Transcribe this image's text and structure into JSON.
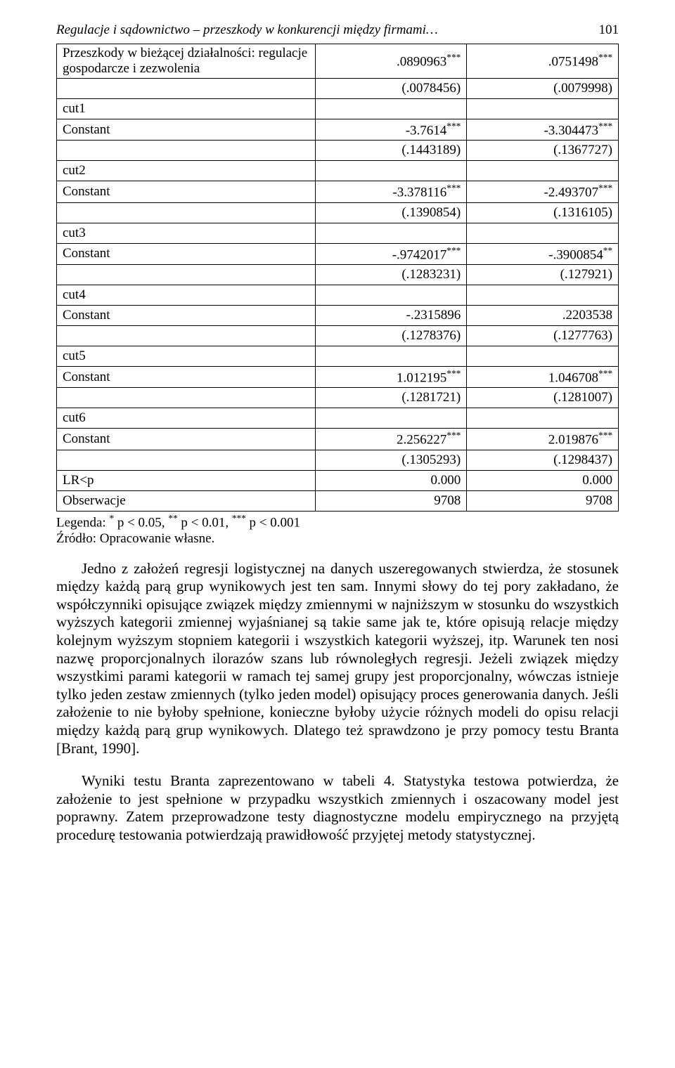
{
  "header": {
    "running_title": "Regulacje i sądownictwo – przeszkody w konkurencji między firmami…",
    "page_number": "101"
  },
  "table": {
    "rows": [
      {
        "label": "Przeszkody w bieżącej działalności: regulacje gospodarcze i zezwolenia",
        "c1": ".0890963",
        "s1": "***",
        "c2": ".0751498",
        "s2": "***"
      },
      {
        "label": "",
        "c1": "(.0078456)",
        "s1": "",
        "c2": "(.0079998)",
        "s2": ""
      },
      {
        "label": "cut1",
        "c1": "",
        "s1": "",
        "c2": "",
        "s2": ""
      },
      {
        "label": "Constant",
        "c1": "-3.7614",
        "s1": "***",
        "c2": "-3.304473",
        "s2": "***"
      },
      {
        "label": "",
        "c1": "(.1443189)",
        "s1": "",
        "c2": "(.1367727)",
        "s2": ""
      },
      {
        "label": "cut2",
        "c1": "",
        "s1": "",
        "c2": "",
        "s2": ""
      },
      {
        "label": "Constant",
        "c1": "-3.378116",
        "s1": "***",
        "c2": "-2.493707",
        "s2": "***"
      },
      {
        "label": "",
        "c1": "(.1390854)",
        "s1": "",
        "c2": "(.1316105)",
        "s2": ""
      },
      {
        "label": "cut3",
        "c1": "",
        "s1": "",
        "c2": "",
        "s2": ""
      },
      {
        "label": "Constant",
        "c1": "-.9742017",
        "s1": "***",
        "c2": "-.3900854",
        "s2": "**"
      },
      {
        "label": "",
        "c1": "(.1283231)",
        "s1": "",
        "c2": "(.127921)",
        "s2": ""
      },
      {
        "label": "cut4",
        "c1": "",
        "s1": "",
        "c2": "",
        "s2": ""
      },
      {
        "label": "Constant",
        "c1": "-.2315896",
        "s1": "",
        "c2": ".2203538",
        "s2": ""
      },
      {
        "label": "",
        "c1": "(.1278376)",
        "s1": "",
        "c2": "(.1277763)",
        "s2": ""
      },
      {
        "label": "cut5",
        "c1": "",
        "s1": "",
        "c2": "",
        "s2": ""
      },
      {
        "label": "Constant",
        "c1": "1.012195",
        "s1": "***",
        "c2": "1.046708",
        "s2": "***"
      },
      {
        "label": "",
        "c1": "(.1281721)",
        "s1": "",
        "c2": "(.1281007)",
        "s2": ""
      },
      {
        "label": "cut6",
        "c1": "",
        "s1": "",
        "c2": "",
        "s2": ""
      },
      {
        "label": "Constant",
        "c1": "2.256227",
        "s1": "***",
        "c2": "2.019876",
        "s2": "***"
      },
      {
        "label": "",
        "c1": "(.1305293)",
        "s1": "",
        "c2": "(.1298437)",
        "s2": ""
      },
      {
        "label": "LR<p",
        "c1": "0.000",
        "s1": "",
        "c2": "0.000",
        "s2": ""
      },
      {
        "label": "Obserwacje",
        "c1": "9708",
        "s1": "",
        "c2": "9708",
        "s2": ""
      }
    ]
  },
  "legend": {
    "line1_prefix": "Legenda: ",
    "line1_a": "*",
    "line1_at": " p < 0.05, ",
    "line1_b": "**",
    "line1_bt": " p < 0.01, ",
    "line1_c": "***",
    "line1_ct": " p < 0.001",
    "line2": "Źródło: Opracowanie własne."
  },
  "paragraphs": {
    "p1": "Jedno z założeń regresji logistycznej na danych uszeregowanych stwierdza, że stosunek między każdą parą grup wynikowych jest ten sam. Innymi słowy do tej pory zakładano, że współczynniki opisujące związek między zmiennymi w najniższym w stosunku do wszystkich wyższych kategorii zmiennej wyjaśnianej są takie same jak te, które opisują relacje między kolejnym wyższym stopniem kategorii i wszystkich kategorii wyższej, itp. Warunek ten nosi nazwę proporcjonalnych ilorazów szans lub równoległych regresji. Jeżeli związek między wszystkimi parami kategorii w ramach tej samej grupy jest proporcjonalny, wówczas istnieje tylko jeden zestaw zmiennych (tylko jeden model) opisujący proces generowania danych. Jeśli założenie to nie byłoby spełnione, konieczne byłoby użycie różnych modeli do opisu relacji między każdą parą grup wynikowych. Dlatego też sprawdzono je przy pomocy testu Branta [Brant, 1990].",
    "p2": "Wyniki testu Branta zaprezentowano w tabeli 4. Statystyka testowa potwierdza, że założenie to jest spełnione w przypadku wszystkich zmiennych i oszacowany model jest poprawny. Zatem przeprowadzone testy diagnostyczne modelu empirycznego na przyjętą procedurę testowania potwierdzają prawidłowość przyjętej metody statystycznej."
  }
}
